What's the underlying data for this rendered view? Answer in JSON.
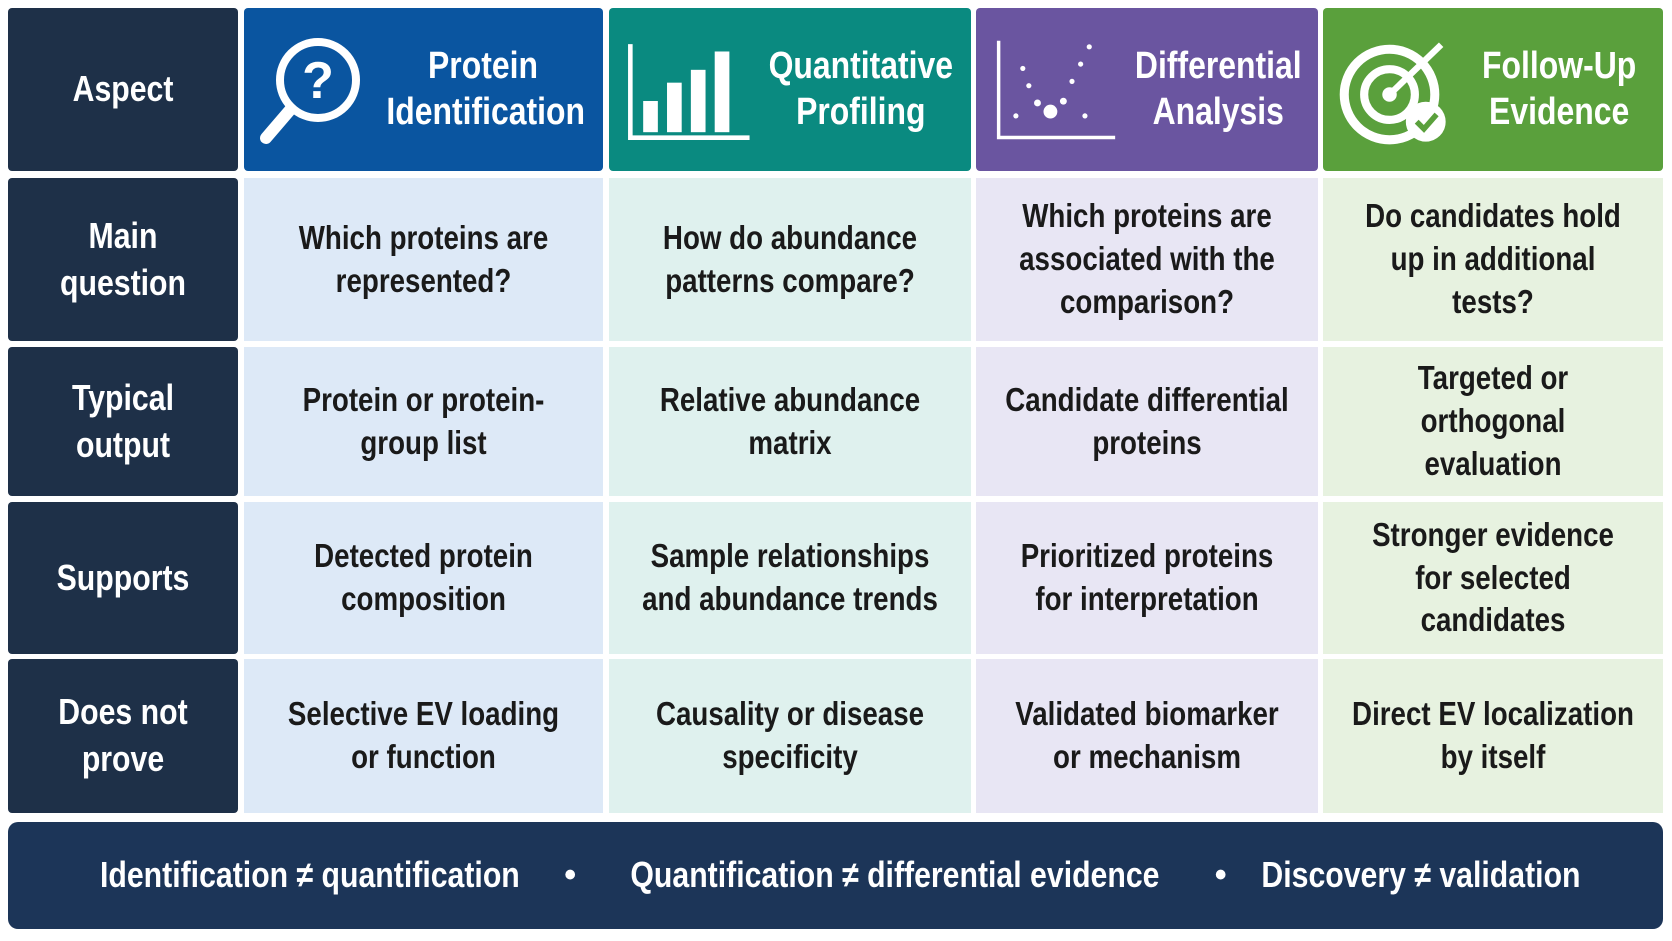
{
  "header": {
    "aspect": "Aspect",
    "columns": [
      "Protein Identification",
      "Quantitative Profiling",
      "Differential Analysis",
      "Follow-Up Evidence"
    ]
  },
  "rows": [
    {
      "label": "Main question",
      "cells": [
        "Which proteins are represented?",
        "How do abundance patterns compare?",
        "Which proteins are associated with the comparison?",
        "Do candidates hold up in additional tests?"
      ]
    },
    {
      "label": "Typical output",
      "cells": [
        "Protein or protein-group list",
        "Relative abundance matrix",
        "Candidate differential proteins",
        "Targeted or orthogonal evaluation"
      ]
    },
    {
      "label": "Supports",
      "cells": [
        "Detected protein composition",
        "Sample relationships and abundance trends",
        "Prioritized proteins for interpretation",
        "Stronger evidence for selected candidates"
      ]
    },
    {
      "label": "Does not prove",
      "cells": [
        "Selective EV loading or function",
        "Causality or disease specificity",
        "Validated biomarker or mechanism",
        "Direct EV localization by itself"
      ]
    }
  ],
  "footer": {
    "items": [
      "Identification ≠ quantification",
      "Quantification ≠ differential evidence",
      "Discovery ≠ validation"
    ]
  }
}
